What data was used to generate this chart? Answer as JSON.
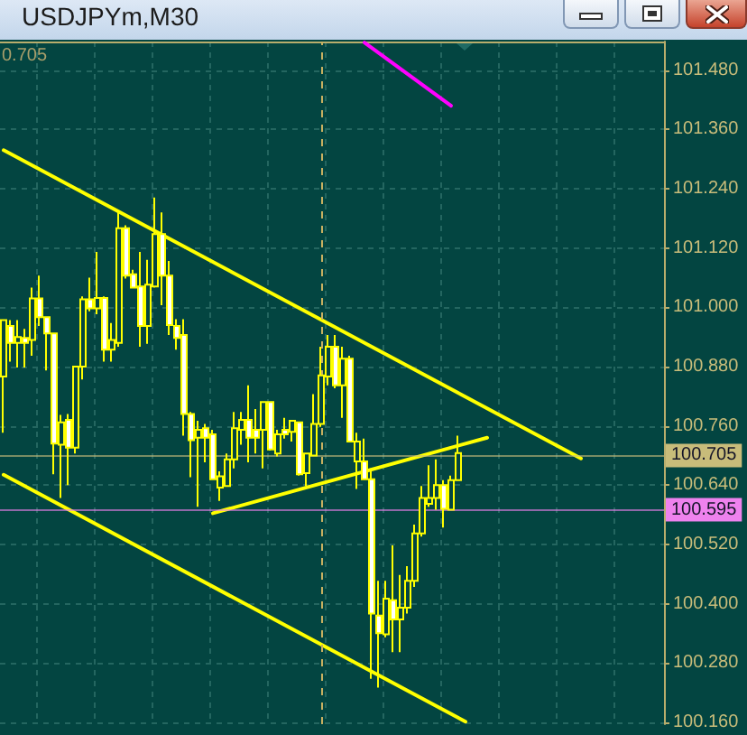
{
  "chart_data": {
    "type": "candlestick",
    "title": "USDJPYm,M30",
    "annotations": [
      "0.705"
    ],
    "categories": [
      null,
      null,
      null,
      null,
      null,
      null,
      null,
      null,
      null,
      null,
      null,
      null,
      null,
      null,
      null,
      null,
      null,
      null,
      null,
      null,
      null,
      null,
      null,
      null,
      null,
      null,
      null,
      null,
      null,
      null,
      null,
      null,
      null,
      null,
      null,
      null,
      null,
      null,
      null,
      null,
      null,
      null,
      null,
      null,
      null,
      null,
      null,
      null,
      null,
      null,
      null,
      null,
      null,
      null,
      null,
      null,
      null,
      null,
      null,
      null,
      null,
      null,
      null,
      null,
      null,
      null,
      null,
      null,
      null,
      null,
      null,
      null,
      null,
      null,
      null,
      null,
      null,
      null,
      null,
      null,
      null,
      null,
      null,
      null,
      null,
      null,
      null,
      null,
      null,
      null,
      null,
      null
    ],
    "color": "#ffff00",
    "ohlc": [
      [
        100.86,
        100.976,
        100.746,
        100.974
      ],
      [
        100.962,
        100.974,
        100.89,
        100.928
      ],
      [
        100.928,
        100.974,
        100.878,
        100.94
      ],
      [
        100.938,
        100.956,
        100.878,
        100.928
      ],
      [
        100.934,
        101.04,
        100.902,
        101.018
      ],
      [
        101.018,
        101.064,
        100.962,
        100.98
      ],
      [
        100.98,
        100.98,
        100.872,
        100.947
      ],
      [
        100.947,
        100.947,
        100.662,
        100.724
      ],
      [
        100.722,
        100.782,
        100.614,
        100.767
      ],
      [
        100.772,
        100.784,
        100.64,
        100.716
      ],
      [
        100.716,
        100.88,
        100.704,
        100.88
      ],
      [
        100.88,
        101.022,
        100.854,
        101.016
      ],
      [
        101.016,
        101.06,
        100.992,
        100.998
      ],
      [
        100.998,
        101.112,
        100.986,
        101.019
      ],
      [
        101.019,
        101.022,
        100.89,
        100.914
      ],
      [
        100.914,
        100.968,
        100.89,
        100.934
      ],
      [
        100.928,
        101.196,
        100.92,
        101.16
      ],
      [
        101.16,
        101.166,
        101.058,
        101.064
      ],
      [
        101.067,
        101.076,
        101.04,
        101.04
      ],
      [
        101.042,
        101.112,
        100.92,
        100.962
      ],
      [
        100.962,
        101.096,
        100.926,
        101.046
      ],
      [
        101.042,
        101.222,
        101.04,
        101.148
      ],
      [
        101.148,
        101.192,
        101.004,
        101.064
      ],
      [
        101.064,
        101.094,
        100.944,
        100.964
      ],
      [
        100.962,
        100.976,
        100.914,
        100.938
      ],
      [
        100.944,
        100.976,
        100.74,
        100.784
      ],
      [
        100.784,
        100.788,
        100.656,
        100.731
      ],
      [
        100.736,
        100.77,
        100.596,
        100.752
      ],
      [
        100.755,
        100.764,
        100.686,
        100.736
      ],
      [
        100.743,
        100.752,
        100.65,
        100.652
      ],
      [
        100.635,
        100.668,
        100.608,
        100.658
      ],
      [
        100.638,
        100.704,
        100.638,
        100.692
      ],
      [
        100.692,
        100.788,
        100.674,
        100.755
      ],
      [
        100.752,
        100.788,
        100.722,
        100.772
      ],
      [
        100.772,
        100.842,
        100.686,
        100.736
      ],
      [
        100.752,
        100.794,
        100.704,
        100.736
      ],
      [
        100.752,
        100.808,
        100.674,
        100.808
      ],
      [
        100.808,
        100.808,
        100.71,
        100.712
      ],
      [
        100.704,
        100.752,
        100.698,
        100.743
      ],
      [
        100.752,
        100.776,
        100.734,
        100.743
      ],
      [
        100.748,
        100.77,
        100.728,
        100.77
      ],
      [
        100.767,
        100.767,
        100.659,
        100.662
      ],
      [
        100.664,
        100.704,
        100.638,
        100.704
      ],
      [
        100.7,
        100.824,
        100.698,
        100.764
      ],
      [
        100.764,
        100.92,
        100.758,
        100.862
      ],
      [
        100.86,
        100.944,
        100.842,
        100.92
      ],
      [
        100.92,
        100.944,
        100.836,
        100.842
      ],
      [
        100.842,
        100.92,
        100.776,
        100.896
      ],
      [
        100.896,
        100.902,
        100.728,
        100.728
      ],
      [
        100.688,
        100.746,
        100.632,
        100.728
      ],
      [
        100.688,
        100.734,
        100.65,
        100.652
      ],
      [
        100.652,
        100.674,
        100.248,
        100.38
      ],
      [
        100.376,
        100.446,
        100.23,
        100.34
      ],
      [
        100.338,
        100.446,
        100.332,
        100.41
      ],
      [
        100.407,
        100.518,
        100.302,
        100.368
      ],
      [
        100.368,
        100.458,
        100.302,
        100.392
      ],
      [
        100.392,
        100.476,
        100.38,
        100.446
      ],
      [
        100.446,
        100.56,
        100.434,
        100.542
      ],
      [
        100.542,
        100.638,
        100.536,
        100.614
      ],
      [
        100.602,
        100.68,
        100.596,
        100.614
      ],
      [
        100.614,
        100.692,
        100.59,
        100.64
      ],
      [
        100.64,
        100.65,
        100.554,
        100.592
      ],
      [
        100.59,
        100.659,
        100.59,
        100.65
      ],
      [
        100.65,
        100.74,
        100.65,
        100.705
      ],
      null,
      null,
      null,
      null,
      null,
      null,
      null,
      null,
      null,
      null,
      null,
      null,
      null,
      null,
      null,
      null,
      null,
      null,
      null,
      null,
      null,
      null,
      null,
      null,
      null,
      null,
      null,
      null
    ],
    "series": [
      {
        "type": "line",
        "color": "#ffff00",
        "values": [
          101.318,
          null,
          null,
          null,
          null,
          null,
          null,
          null,
          null,
          null,
          null,
          null,
          null,
          null,
          null,
          null,
          null,
          null,
          null,
          null,
          null,
          null,
          null,
          null,
          null,
          null,
          null,
          null,
          null,
          null,
          null,
          null,
          null,
          null,
          null,
          null,
          null,
          null,
          null,
          null,
          null,
          null,
          null,
          null,
          null,
          null,
          null,
          null,
          null,
          null,
          null,
          null,
          null,
          null,
          null,
          null,
          null,
          null,
          null,
          null,
          null,
          null,
          null,
          null,
          null,
          null,
          null,
          null,
          null,
          null,
          null,
          null,
          null,
          null,
          null,
          null,
          null,
          null,
          null,
          null,
          100.694,
          null,
          null,
          null,
          null,
          null,
          null,
          null,
          null,
          null,
          null,
          null
        ]
      },
      {
        "type": "line",
        "color": "#ffff00",
        "values": [
          100.661,
          null,
          null,
          null,
          null,
          null,
          null,
          null,
          null,
          null,
          null,
          null,
          null,
          null,
          null,
          null,
          null,
          null,
          null,
          null,
          null,
          null,
          null,
          null,
          null,
          null,
          null,
          null,
          null,
          null,
          null,
          null,
          null,
          null,
          null,
          null,
          null,
          null,
          null,
          null,
          null,
          null,
          null,
          null,
          null,
          null,
          null,
          null,
          null,
          null,
          null,
          null,
          null,
          null,
          null,
          null,
          null,
          null,
          null,
          null,
          null,
          null,
          null,
          null,
          100.161,
          null,
          null,
          null,
          null,
          null,
          null,
          null,
          null,
          null,
          null,
          null,
          null,
          null,
          null,
          null,
          null,
          null,
          null,
          null,
          null,
          null,
          null,
          null,
          null,
          null,
          null,
          null
        ]
      },
      {
        "type": "line",
        "color": "#ffff00",
        "values": [
          null,
          null,
          null,
          null,
          null,
          null,
          null,
          null,
          null,
          null,
          null,
          null,
          null,
          null,
          null,
          null,
          null,
          null,
          null,
          null,
          null,
          null,
          null,
          null,
          null,
          null,
          null,
          null,
          null,
          100.583,
          null,
          null,
          null,
          null,
          null,
          null,
          null,
          null,
          null,
          null,
          null,
          null,
          null,
          null,
          null,
          null,
          null,
          null,
          null,
          null,
          null,
          null,
          null,
          null,
          null,
          null,
          null,
          null,
          null,
          null,
          null,
          null,
          null,
          null,
          null,
          null,
          null,
          100.736,
          null,
          null,
          null,
          null,
          null,
          null,
          null,
          null,
          null,
          null,
          null,
          null,
          null,
          null,
          null,
          null,
          null,
          null,
          null,
          null,
          null,
          null,
          null,
          null
        ]
      },
      {
        "type": "line",
        "color": "#ff00ff",
        "values": [
          null,
          null,
          null,
          null,
          null,
          null,
          null,
          null,
          null,
          null,
          null,
          null,
          null,
          null,
          null,
          null,
          null,
          null,
          null,
          null,
          null,
          null,
          null,
          null,
          null,
          null,
          null,
          null,
          null,
          null,
          null,
          null,
          null,
          null,
          null,
          null,
          null,
          null,
          null,
          null,
          null,
          null,
          null,
          null,
          null,
          null,
          null,
          null,
          null,
          null,
          101.536,
          null,
          null,
          null,
          null,
          null,
          null,
          null,
          null,
          null,
          null,
          null,
          101.408,
          null,
          null,
          null,
          null,
          null,
          null,
          null,
          null,
          null,
          null,
          null,
          null,
          null,
          null,
          null,
          null,
          null,
          null,
          null,
          null,
          null,
          null,
          null,
          null,
          null,
          null,
          null,
          null,
          null
        ]
      }
    ],
    "ylim": [
      100.156,
      101.538
    ],
    "yticks": [
      {
        "value": 100.16,
        "label": "100.160"
      },
      {
        "value": 100.28,
        "label": "100.280"
      },
      {
        "value": 100.4,
        "label": "100.400"
      },
      {
        "value": 100.52,
        "label": "100.520"
      },
      {
        "value": 100.64,
        "label": "100.640"
      },
      {
        "value": 100.76,
        "label": "100.760"
      },
      {
        "value": 100.88,
        "label": "100.880"
      },
      {
        "value": 101,
        "label": "101.000"
      },
      {
        "value": 101.12,
        "label": "101.120"
      },
      {
        "value": 101.24,
        "label": "101.240"
      },
      {
        "value": 101.36,
        "label": "101.360"
      },
      {
        "value": 101.48,
        "label": "101.480"
      }
    ],
    "grid": true,
    "tick_labels": "y",
    "ref_lines": [
      {
        "axis": "y",
        "value": 100.705,
        "label": "100.705",
        "color": "#c8bc7a"
      },
      {
        "axis": "y",
        "value": 100.595,
        "label": "100.595",
        "color": "#ee82ee"
      }
    ]
  }
}
